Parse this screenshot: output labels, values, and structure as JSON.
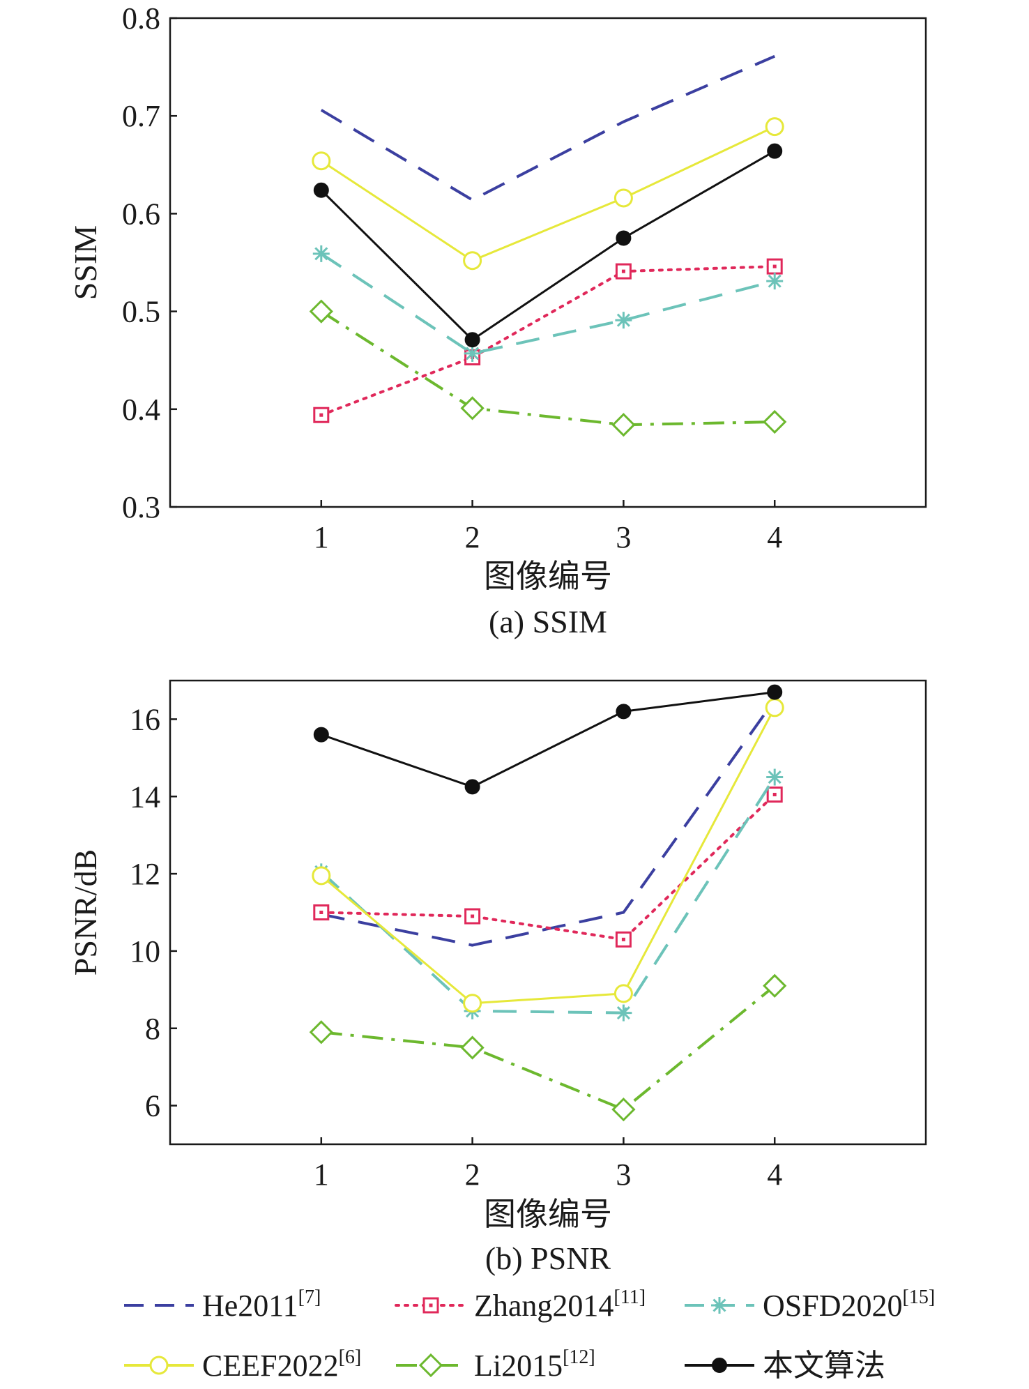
{
  "chart_data": [
    {
      "type": "line",
      "caption": "(a) SSIM",
      "xlabel": "图像编号",
      "ylabel": "SSIM",
      "x": [
        1,
        2,
        3,
        4
      ],
      "xticks": [
        "1",
        "2",
        "3",
        "4"
      ],
      "xlim": [
        0,
        5
      ],
      "ylim": [
        0.3,
        0.8
      ],
      "yticks": [
        "0.3",
        "0.4",
        "0.5",
        "0.6",
        "0.7",
        "0.8"
      ],
      "grid": false,
      "series": [
        {
          "name": "He2011",
          "values": [
            0.706,
            0.614,
            0.694,
            0.761
          ]
        },
        {
          "name": "Zhang2014",
          "values": [
            0.394,
            0.453,
            0.541,
            0.546
          ]
        },
        {
          "name": "OSFD2020",
          "values": [
            0.559,
            0.457,
            0.491,
            0.531
          ]
        },
        {
          "name": "CEEF2022",
          "values": [
            0.654,
            0.552,
            0.616,
            0.689
          ]
        },
        {
          "name": "Li2015",
          "values": [
            0.5,
            0.401,
            0.384,
            0.387
          ]
        },
        {
          "name": "本文算法",
          "values": [
            0.624,
            0.471,
            0.575,
            0.664
          ]
        }
      ]
    },
    {
      "type": "line",
      "caption": "(b) PSNR",
      "xlabel": "图像编号",
      "ylabel": "PSNR/dB",
      "x": [
        1,
        2,
        3,
        4
      ],
      "xticks": [
        "1",
        "2",
        "3",
        "4"
      ],
      "xlim": [
        0,
        5
      ],
      "ylim": [
        5,
        17
      ],
      "yticks": [
        "6",
        "8",
        "10",
        "12",
        "14",
        "16"
      ],
      "grid": false,
      "series": [
        {
          "name": "He2011",
          "values": [
            10.95,
            10.15,
            11.0,
            16.5
          ]
        },
        {
          "name": "Zhang2014",
          "values": [
            11.0,
            10.9,
            10.3,
            14.05
          ]
        },
        {
          "name": "OSFD2020",
          "values": [
            12.05,
            8.45,
            8.4,
            14.5
          ]
        },
        {
          "name": "CEEF2022",
          "values": [
            11.95,
            8.65,
            8.9,
            16.3
          ]
        },
        {
          "name": "Li2015",
          "values": [
            7.9,
            7.5,
            5.9,
            9.1
          ]
        },
        {
          "name": "本文算法",
          "values": [
            15.6,
            14.25,
            16.2,
            16.7
          ]
        }
      ]
    }
  ],
  "legend": {
    "placement": "bottom",
    "items": [
      {
        "label": "He2011",
        "ref": "[7]"
      },
      {
        "label": "Zhang2014",
        "ref": "[11]"
      },
      {
        "label": "OSFD2020",
        "ref": "[15]"
      },
      {
        "label": "CEEF2022",
        "ref": "[6]"
      },
      {
        "label": "Li2015",
        "ref": "[12]"
      },
      {
        "label": "本文算法",
        "ref": ""
      }
    ]
  },
  "style": {
    "He2011": {
      "color": "#3b3fa0",
      "dash": "dashed",
      "marker": "none"
    },
    "Zhang2014": {
      "color": "#e0285a",
      "dash": "dotted",
      "marker": "square"
    },
    "OSFD2020": {
      "color": "#6cc3b9",
      "dash": "dashed",
      "marker": "asterisk"
    },
    "CEEF2022": {
      "color": "#e6e83a",
      "dash": "solid",
      "marker": "circle"
    },
    "Li2015": {
      "color": "#6cb82e",
      "dash": "dashdot",
      "marker": "diamond"
    },
    "本文算法": {
      "color": "#111111",
      "dash": "solid",
      "marker": "filled-circle"
    }
  }
}
